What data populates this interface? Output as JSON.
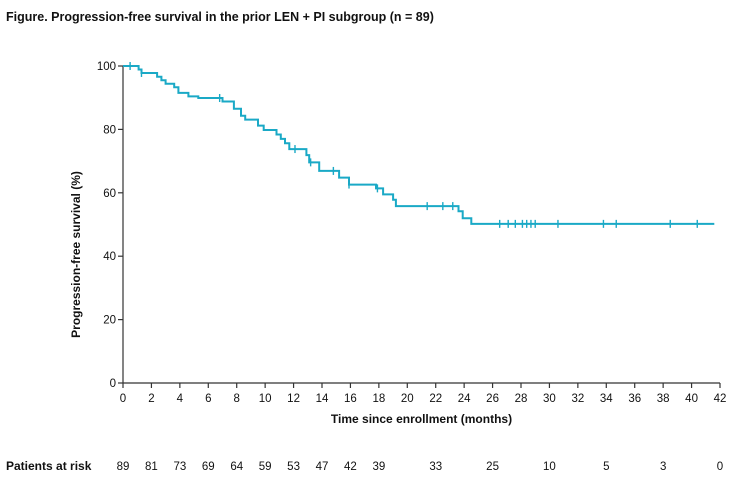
{
  "figure_title": "Figure. Progression-free survival in the prior LEN + PI subgroup (n = 89)",
  "chart_data": {
    "type": "line",
    "subtype": "kaplan-meier",
    "title": "Figure. Progression-free survival in the prior LEN + PI subgroup (n = 89)",
    "xlabel": "Time since enrollment (months)",
    "ylabel": "Progression-free survival (%)",
    "xlim": [
      0,
      42
    ],
    "ylim": [
      0,
      100
    ],
    "x_ticks": [
      0,
      2,
      4,
      6,
      8,
      10,
      12,
      14,
      16,
      18,
      20,
      22,
      24,
      26,
      28,
      30,
      32,
      34,
      36,
      38,
      40,
      42
    ],
    "y_ticks": [
      0,
      20,
      40,
      60,
      80,
      100
    ],
    "grid": false,
    "series_color": "#1aa9c6",
    "series": [
      {
        "name": "Prior LEN + PI subgroup",
        "steps": [
          [
            0,
            100
          ],
          [
            1.1,
            98.9
          ],
          [
            1.3,
            97.8
          ],
          [
            2.4,
            96.6
          ],
          [
            2.7,
            95.5
          ],
          [
            3.0,
            94.4
          ],
          [
            3.6,
            93.3
          ],
          [
            3.9,
            91.5
          ],
          [
            4.6,
            90.4
          ],
          [
            5.3,
            89.9
          ],
          [
            7.0,
            88.8
          ],
          [
            7.8,
            86.5
          ],
          [
            8.3,
            84.3
          ],
          [
            8.6,
            83.1
          ],
          [
            9.5,
            81.2
          ],
          [
            9.9,
            79.8
          ],
          [
            10.8,
            78.4
          ],
          [
            11.1,
            77.0
          ],
          [
            11.4,
            75.6
          ],
          [
            11.7,
            73.8
          ],
          [
            12.9,
            71.9
          ],
          [
            13.1,
            69.6
          ],
          [
            13.8,
            66.9
          ],
          [
            15.2,
            64.8
          ],
          [
            15.9,
            62.6
          ],
          [
            17.8,
            61.4
          ],
          [
            18.3,
            59.5
          ],
          [
            19.0,
            57.8
          ],
          [
            19.2,
            55.8
          ],
          [
            23.6,
            54.2
          ],
          [
            23.9,
            52.0
          ],
          [
            24.5,
            50.2
          ],
          [
            41.6,
            50.2
          ]
        ],
        "censor_times": [
          0.5,
          1.3,
          6.8,
          12.1,
          13.2,
          14.8,
          15.9,
          17.9,
          21.4,
          22.5,
          23.2,
          26.5,
          27.1,
          27.6,
          28.1,
          28.4,
          28.7,
          29.0,
          30.6,
          33.8,
          34.7,
          38.5,
          40.4
        ]
      }
    ],
    "risk_table": {
      "label": "Patients at risk",
      "times": [
        0,
        2,
        4,
        6,
        8,
        10,
        12,
        14,
        16,
        18,
        22,
        26,
        30,
        34,
        38,
        42
      ],
      "counts": [
        "89",
        "81",
        "73",
        "69",
        "64",
        "59",
        "53",
        "47",
        "42",
        "39",
        "33",
        "25",
        "10",
        "5",
        "3",
        "0"
      ]
    }
  }
}
